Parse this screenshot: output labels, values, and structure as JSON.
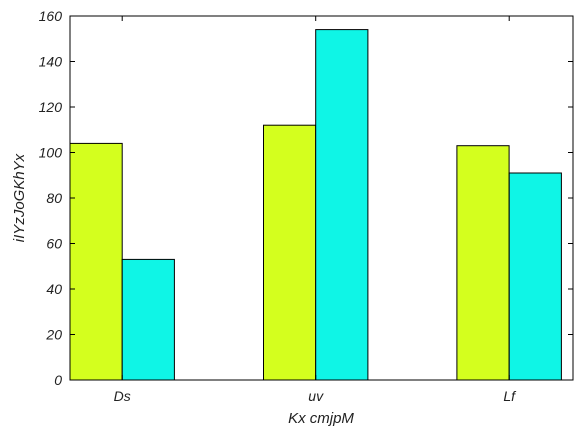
{
  "chart_data": {
    "type": "bar",
    "categories": [
      "Ds",
      "uv",
      "Lf"
    ],
    "series": [
      {
        "values": [
          104,
          112,
          103
        ],
        "color": "#d4ff1e"
      },
      {
        "values": [
          53,
          154,
          91
        ],
        "color": "#0ff5e6"
      }
    ],
    "xlabel": "Kx cmjpM",
    "ylabel": "iIYzJoGKhYx",
    "ylim": [
      0,
      160
    ],
    "yticks": [
      0,
      20,
      40,
      60,
      80,
      100,
      120,
      140,
      160
    ],
    "grid": false
  }
}
